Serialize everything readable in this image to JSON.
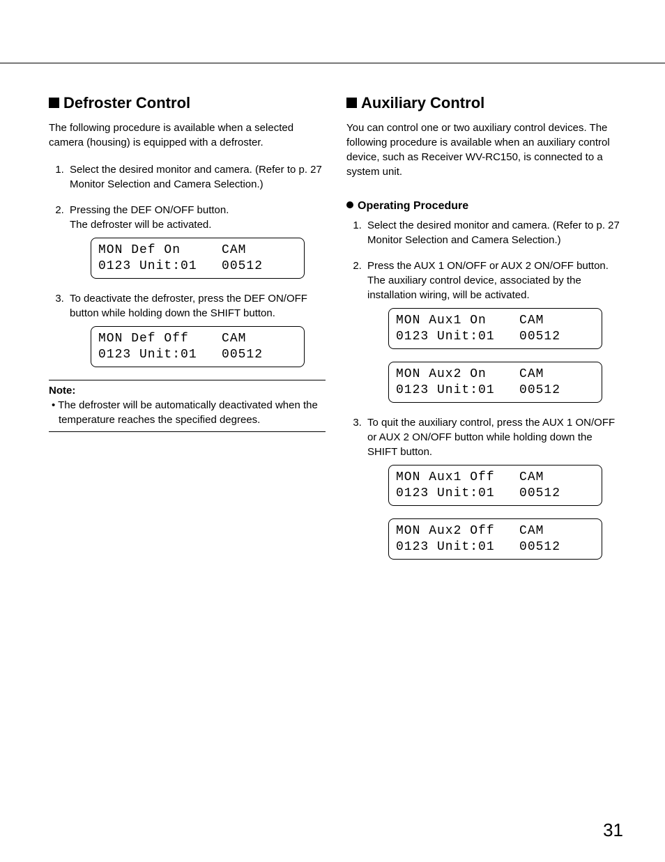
{
  "page_number": "31",
  "left": {
    "heading": "Defroster Control",
    "intro": "The following procedure is available when a selected camera (housing) is equipped with a defroster.",
    "steps": [
      "Select the desired monitor and camera. (Refer to p. 27 Monitor Selection and Camera Selection.)",
      "Pressing the DEF ON/OFF button.\nThe defroster will be activated.",
      "To deactivate the defroster, press the DEF ON/OFF button while holding down the SHIFT button."
    ],
    "display1_l1": "MON Def On     CAM",
    "display1_l2": "0123 Unit:01   00512",
    "display2_l1": "MON Def Off    CAM",
    "display2_l2": "0123 Unit:01   00512",
    "note_label": "Note:",
    "note_body": "• The defroster will be automatically deactivated when the temperature reaches the specified degrees."
  },
  "right": {
    "heading": "Auxiliary Control",
    "intro": "You can control one or two auxiliary control devices. The following procedure is available when an auxiliary control device, such as Receiver WV-RC150, is connected to a system unit.",
    "subheading": "Operating Procedure",
    "steps": [
      "Select the desired monitor and camera. (Refer to p. 27 Monitor Selection and Camera Selection.)",
      "Press the AUX 1 ON/OFF or AUX 2 ON/OFF button.\nThe auxiliary control device, associated by the installation wiring, will be activated.",
      "To quit the auxiliary control, press the AUX 1 ON/OFF or AUX 2 ON/OFF button while holding down the SHIFT button."
    ],
    "display1_l1": "MON Aux1 On    CAM",
    "display1_l2": "0123 Unit:01   00512",
    "display2_l1": "MON Aux2 On    CAM",
    "display2_l2": "0123 Unit:01   00512",
    "display3_l1": "MON Aux1 Off   CAM",
    "display3_l2": "0123 Unit:01   00512",
    "display4_l1": "MON Aux2 Off   CAM",
    "display4_l2": "0123 Unit:01   00512"
  }
}
